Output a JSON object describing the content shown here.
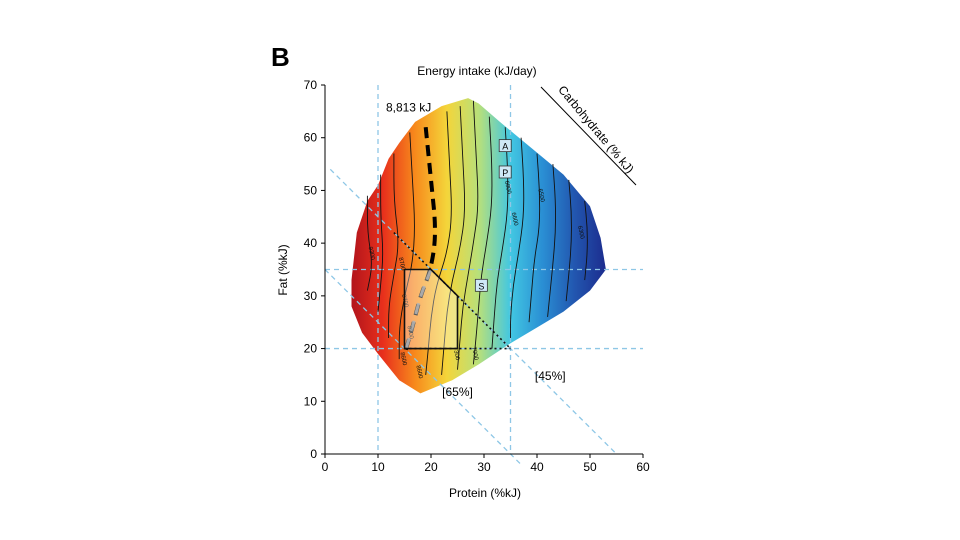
{
  "panel_label": "B",
  "chart_data": {
    "type": "heatmap",
    "title": "Energy intake (kJ/day)",
    "xlabel": "Protein (%kJ)",
    "ylabel": "Fat (%kJ)",
    "diagonal_axis_label": "Carbohydrate (% kJ)",
    "xlim": [
      0,
      60
    ],
    "ylim": [
      0,
      70
    ],
    "x_ticks": [
      0,
      10,
      20,
      30,
      40,
      50,
      60
    ],
    "y_ticks": [
      0,
      10,
      20,
      30,
      40,
      50,
      60,
      70
    ],
    "colorscale": [
      "#b2141c",
      "#e8301c",
      "#f78a1c",
      "#f4d53a",
      "#b8e07a",
      "#42c7e2",
      "#2a8fd4",
      "#2257b0",
      "#1c2c8e"
    ],
    "colorscale_direction": "high energy at low protein (red) to low energy at high protein (blue)",
    "surface_outline": [
      [
        5,
        33
      ],
      [
        6,
        42
      ],
      [
        8,
        48
      ],
      [
        10,
        51
      ],
      [
        12,
        56
      ],
      [
        14,
        59
      ],
      [
        17,
        63
      ],
      [
        22,
        66
      ],
      [
        27,
        67.5
      ],
      [
        29,
        66.5
      ],
      [
        33,
        63
      ],
      [
        39,
        58
      ],
      [
        45,
        53
      ],
      [
        50,
        47
      ],
      [
        52,
        41
      ],
      [
        53,
        35
      ],
      [
        50,
        31
      ],
      [
        45,
        27
      ],
      [
        40,
        24
      ],
      [
        35,
        21
      ],
      [
        29,
        17
      ],
      [
        24,
        14
      ],
      [
        18,
        11.5
      ],
      [
        14,
        14
      ],
      [
        10,
        19
      ],
      [
        7,
        23
      ],
      [
        5,
        28
      ]
    ],
    "reference_lines": {
      "protein_vertical": [
        10,
        35
      ],
      "fat_horizontal": [
        20,
        35
      ],
      "carbohydrate_diagonal": [
        {
          "label": "[65%]",
          "carb_percent": 65
        },
        {
          "label": "[45%]",
          "carb_percent": 45
        }
      ]
    },
    "highlighted_contour": {
      "label": "8,813 kJ",
      "path": [
        [
          19,
          62
        ],
        [
          20,
          52
        ],
        [
          21,
          42
        ],
        [
          20,
          35
        ],
        [
          18,
          30
        ],
        [
          16.5,
          24
        ],
        [
          15,
          19
        ]
      ]
    },
    "contours": [
      {
        "label": "",
        "path": [
          [
            8,
            49
          ],
          [
            8,
            42
          ],
          [
            9,
            36
          ],
          [
            8,
            31
          ]
        ]
      },
      {
        "label": "",
        "path": [
          [
            10.5,
            53
          ],
          [
            10.5,
            45
          ],
          [
            11,
            38
          ],
          [
            10.5,
            32
          ],
          [
            10,
            27
          ]
        ]
      },
      {
        "label": "",
        "path": [
          [
            13,
            57
          ],
          [
            13,
            48
          ],
          [
            14,
            40
          ],
          [
            13,
            34
          ],
          [
            12,
            28
          ],
          [
            12,
            22
          ]
        ]
      },
      {
        "label": "",
        "path": [
          [
            16,
            61
          ],
          [
            16.5,
            52
          ],
          [
            17,
            43
          ],
          [
            16.5,
            36
          ],
          [
            15,
            30
          ],
          [
            14,
            24
          ],
          [
            14,
            18
          ]
        ]
      },
      {
        "label": "",
        "path": [
          [
            23,
            65
          ],
          [
            23.5,
            55
          ],
          [
            24,
            45
          ],
          [
            23,
            38
          ],
          [
            21,
            32
          ],
          [
            20,
            26
          ],
          [
            19.5,
            20
          ],
          [
            19,
            15
          ]
        ]
      },
      {
        "label": "",
        "path": [
          [
            25.5,
            66
          ],
          [
            26,
            56
          ],
          [
            26.5,
            46
          ],
          [
            25.5,
            39
          ],
          [
            24,
            33
          ],
          [
            23,
            27
          ],
          [
            22.5,
            21
          ],
          [
            22,
            15
          ]
        ]
      },
      {
        "label": "",
        "path": [
          [
            28,
            67
          ],
          [
            28.5,
            57
          ],
          [
            29,
            47
          ],
          [
            28,
            40
          ],
          [
            27,
            34
          ],
          [
            26,
            28
          ],
          [
            25.5,
            22
          ],
          [
            25,
            16
          ]
        ]
      },
      {
        "label": "",
        "path": [
          [
            31,
            64
          ],
          [
            31.5,
            55
          ],
          [
            31.5,
            47
          ],
          [
            30.5,
            40
          ],
          [
            29.5,
            34
          ],
          [
            29,
            28
          ],
          [
            28.5,
            22
          ],
          [
            28,
            17
          ]
        ]
      },
      {
        "label": "",
        "path": [
          [
            34,
            62
          ],
          [
            34.5,
            54
          ],
          [
            34.5,
            46
          ],
          [
            33.5,
            39
          ],
          [
            32.5,
            33
          ],
          [
            32,
            27
          ],
          [
            31.5,
            20
          ]
        ]
      },
      {
        "label": "",
        "path": [
          [
            37,
            60
          ],
          [
            37.5,
            52
          ],
          [
            37.5,
            45
          ],
          [
            36.5,
            38
          ],
          [
            35.5,
            32
          ],
          [
            35,
            26
          ],
          [
            35,
            22
          ]
        ]
      },
      {
        "label": "",
        "path": [
          [
            40,
            57
          ],
          [
            40.5,
            50
          ],
          [
            40.5,
            43
          ],
          [
            39.5,
            37
          ],
          [
            39,
            31
          ],
          [
            38.5,
            25
          ]
        ]
      },
      {
        "label": "",
        "path": [
          [
            43,
            55
          ],
          [
            43.5,
            48
          ],
          [
            43.5,
            42
          ],
          [
            43,
            36
          ],
          [
            42.5,
            31
          ],
          [
            42,
            26
          ]
        ]
      },
      {
        "label": "",
        "path": [
          [
            46,
            52
          ],
          [
            46.5,
            46
          ],
          [
            46.5,
            40
          ],
          [
            46,
            34
          ],
          [
            45.5,
            29
          ]
        ]
      },
      {
        "label": "",
        "path": [
          [
            49,
            48
          ],
          [
            49.5,
            43
          ],
          [
            49.5,
            38
          ],
          [
            49,
            33
          ]
        ]
      }
    ],
    "contour_labels": [
      {
        "text": "9300",
        "x": 8.5,
        "y": 38
      },
      {
        "text": "8700",
        "x": 14.2,
        "y": 36
      },
      {
        "text": "8700",
        "x": 14.8,
        "y": 29
      },
      {
        "text": "8700",
        "x": 15.8,
        "y": 23
      },
      {
        "text": "8600",
        "x": 14.5,
        "y": 18
      },
      {
        "text": "8600",
        "x": 17.5,
        "y": 15.5
      },
      {
        "text": "7300",
        "x": 24.5,
        "y": 19
      },
      {
        "text": "7000",
        "x": 28,
        "y": 19
      },
      {
        "text": "6800",
        "x": 34.2,
        "y": 50.5
      },
      {
        "text": "6600",
        "x": 35.5,
        "y": 44.5
      },
      {
        "text": "6500",
        "x": 40.5,
        "y": 49
      },
      {
        "text": "6300",
        "x": 48,
        "y": 42
      }
    ],
    "points": [
      {
        "label": "A",
        "x": 34,
        "y": 58.5
      },
      {
        "label": "P",
        "x": 34,
        "y": 53.5
      },
      {
        "label": "S",
        "x": 29.5,
        "y": 32
      }
    ],
    "pentagon_region": [
      [
        15,
        35
      ],
      [
        20,
        35
      ],
      [
        25,
        30
      ],
      [
        25,
        20
      ],
      [
        15,
        20
      ]
    ],
    "carb_labels": [
      {
        "text": "[65%]",
        "x": 25,
        "y": 11
      },
      {
        "text": "[45%]",
        "x": 42.5,
        "y": 14
      }
    ]
  }
}
